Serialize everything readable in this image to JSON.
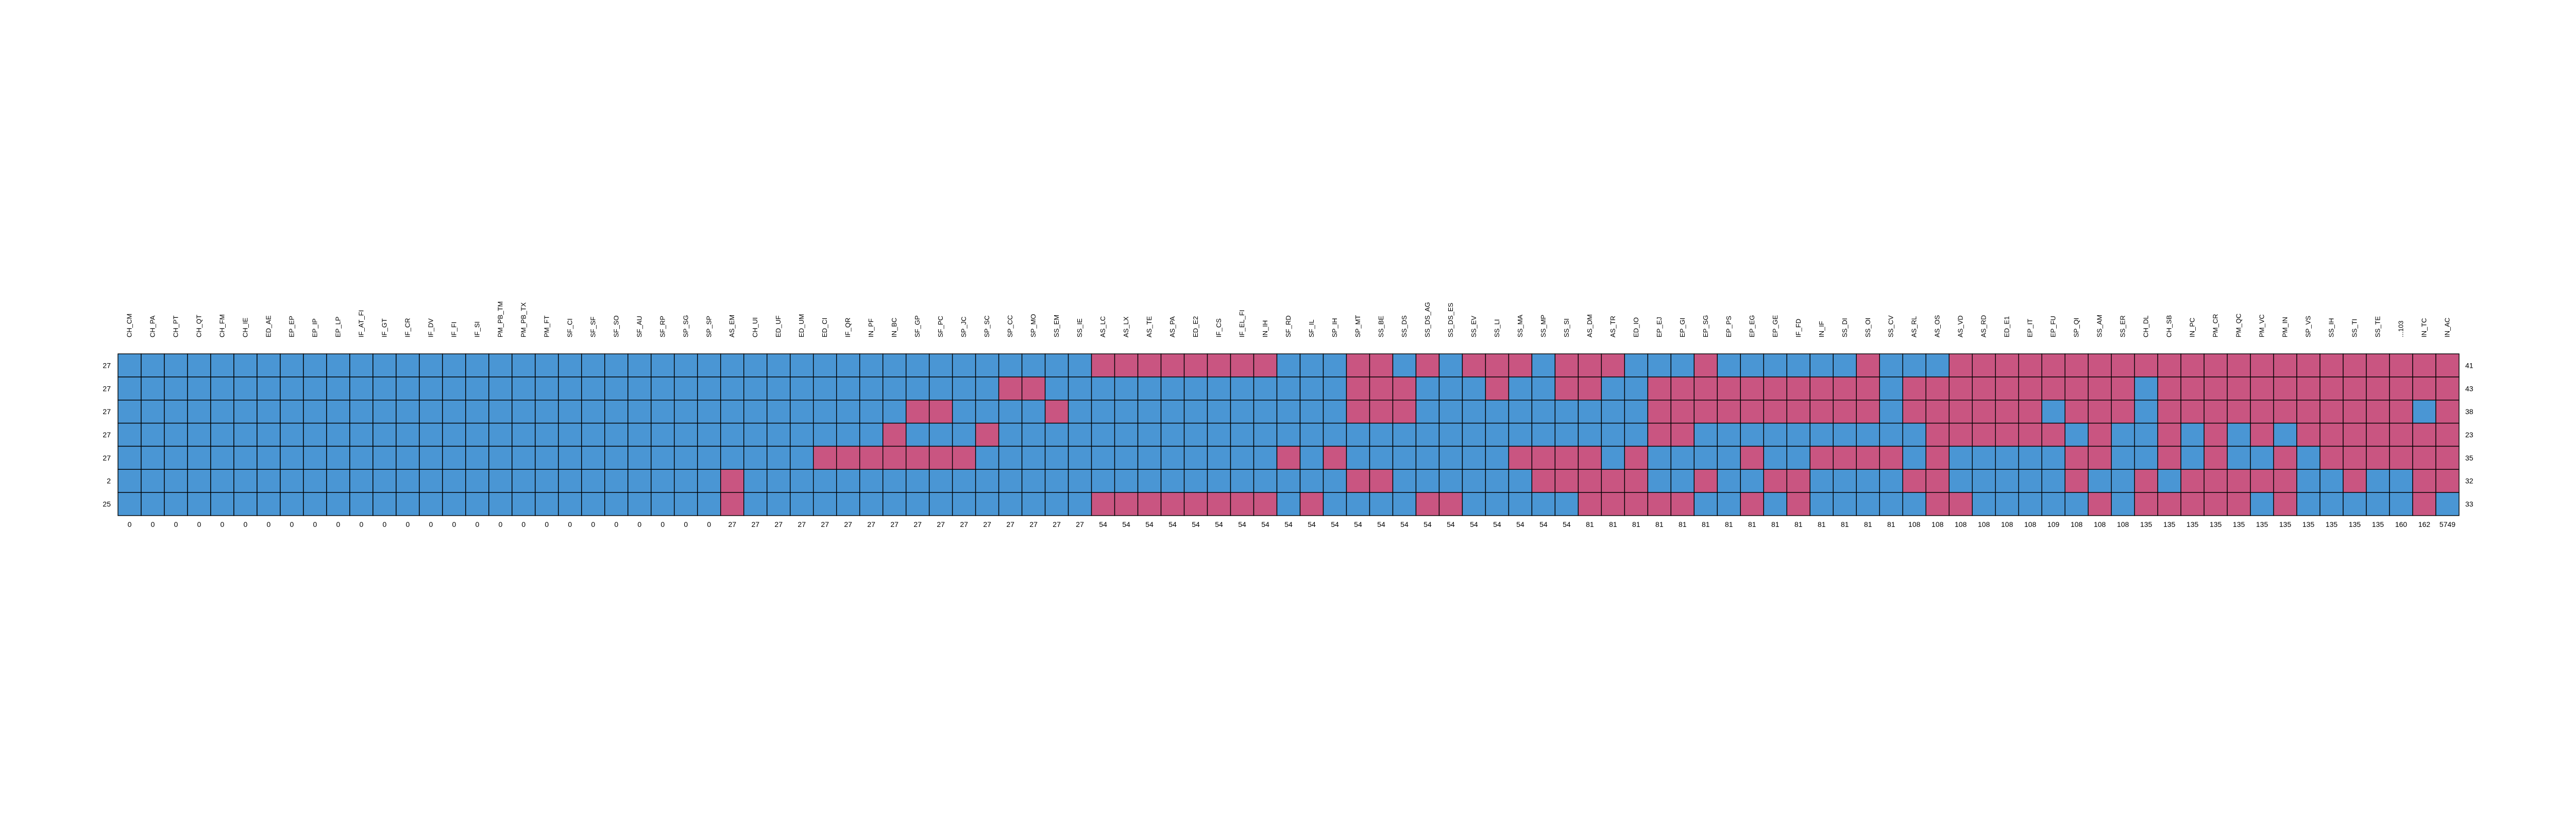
{
  "colors": {
    "blue": "#4a96d4",
    "pink": "#c95581",
    "border": "#000000",
    "background": "#ffffff"
  },
  "legend": "none",
  "chart_data": {
    "type": "heatmap",
    "columns": [
      "CH_CM",
      "CH_PA",
      "CH_PT",
      "CH_QT",
      "CH_FM",
      "CH_IE",
      "ED_AE",
      "EP_EP",
      "EP_IP",
      "EP_LP",
      "IF_AT_FI",
      "IF_GT",
      "IF_CR",
      "IF_DV",
      "IF_FI",
      "IF_SI",
      "PM_PB_TM",
      "PM_PB_TX",
      "PM_FT",
      "SF_CI",
      "SF_SF",
      "SF_SO",
      "SF_AU",
      "SF_RP",
      "SP_SG",
      "SP_SP",
      "AS_EM",
      "CH_UI",
      "ED_UF",
      "ED_UM",
      "ED_CI",
      "IF_QR",
      "IN_PF",
      "IN_BC",
      "SF_GP",
      "SF_PC",
      "SP_JC",
      "SP_SC",
      "SP_CC",
      "SP_MO",
      "SS_EM",
      "SS_IE",
      "AS_LC",
      "AS_LX",
      "AS_TE",
      "AS_PA",
      "ED_E2",
      "IF_CS",
      "IF_EL_FI",
      "IN_IH",
      "SF_RD",
      "SF_IL",
      "SP_IH",
      "SP_MT",
      "SS_BE",
      "SS_DS",
      "SS_DS_AG",
      "SS_DS_ES",
      "SS_EV",
      "SS_LI",
      "SS_MA",
      "SS_MP",
      "SS_SI",
      "AS_DM",
      "AS_TR",
      "ED_IO",
      "EP_EJ",
      "EP_GI",
      "EP_SG",
      "EP_PS",
      "EP_EG",
      "EP_GE",
      "IF_FD",
      "IN_IF",
      "SS_DI",
      "SS_OI",
      "SS_CV",
      "AS_RL",
      "AS_OS",
      "AS_VD",
      "AS_RD",
      "ED_E1",
      "EP_IT",
      "EP_FU",
      "SP_QI",
      "SS_AM",
      "SS_ER",
      "CH_DL",
      "CH_SB",
      "IN_PC",
      "PM_CR",
      "PM_QC",
      "PM_VC",
      "PM_IN",
      "SP_VS",
      "SS_IH",
      "SS_TI",
      "SS_TE",
      "...103",
      "IN_TC",
      "IN_AC"
    ],
    "column_totals": [
      "0",
      "0",
      "0",
      "0",
      "0",
      "0",
      "0",
      "0",
      "0",
      "0",
      "0",
      "0",
      "0",
      "0",
      "0",
      "0",
      "0",
      "0",
      "0",
      "0",
      "0",
      "0",
      "0",
      "0",
      "0",
      "0",
      "27",
      "27",
      "27",
      "27",
      "27",
      "27",
      "27",
      "27",
      "27",
      "27",
      "27",
      "27",
      "27",
      "27",
      "27",
      "27",
      "54",
      "54",
      "54",
      "54",
      "54",
      "54",
      "54",
      "54",
      "54",
      "54",
      "54",
      "54",
      "54",
      "54",
      "54",
      "54",
      "54",
      "54",
      "54",
      "54",
      "54",
      "81",
      "81",
      "81",
      "81",
      "81",
      "81",
      "81",
      "81",
      "81",
      "81",
      "81",
      "81",
      "81",
      "81",
      "108",
      "108",
      "108",
      "108",
      "108",
      "108",
      "109",
      "108",
      "108",
      "108",
      "135",
      "135",
      "135",
      "135",
      "135",
      "135",
      "135",
      "135",
      "135",
      "135",
      "135",
      "160",
      "162",
      "5749"
    ],
    "row_left_labels": [
      "27",
      "27",
      "27",
      "27",
      "27",
      "2",
      "25"
    ],
    "row_right_labels": [
      "41",
      "43",
      "38",
      "23",
      "35",
      "32",
      "33"
    ],
    "matrix": [
      "BBBBBBBBBBBBBBBBBBBBBBBBBBBBBBBBBBBBBBBBBBPPPPPPPPBBBPPBPBPPPBPPPBBBPBBBBBBPBBBPPPPPPPPPPPPPPPPPPPPPPPP",
      "BBBBBBBBBBBBBBBBBBBBBBBBBBBBBBBBBBBBBBPPBBBBBBBBBBBBBPPPBBBPBBPPBBPPPPPPPPPPBPPPPPPPPPPBPPPPPPPPPPPPPPPP",
      "BBBBBBBBBBBBBBBBBBBBBBBBBBBBBBBBBBPPBBBBPBBBBBBBBBBBBPPPBBBBBBBBBBPPPPPPPPPPBPPPPPPBPPPBPPPPPPPPPPPBPPPPP",
      "BBBBBBBBBBBBBBBBBBBBBBBBBBBBBBBBBPBBBPBBBBBBBBBBBBBBBBBBBBBBBBBBBBPPBBBBBBBBBBPPPPPPBPBBPBPBPBPPPPPPPPPPP",
      "BBBBBBBBBBBBBBBBBBBBBBBBBBBBBBPPPPPPPBBBBBBBBBBBBBPBPBBBBBBBPPPPBPBBBBPBBPPPPBPBBBBBPPBBPBPBBPBPPPPPPPPP",
      "BBBBBBBBBBBBBBBBBBBBBBBBBBPBBBBBBBBBBBBBBBBBBBBBBBBBBPPBBBBBBPPPPPBBPBBPPBBBBPPBBBBBPBBPBPPPPPBBPBBPPPPP",
      "BBBBBBBBBBBBBBBBBBBBBBBBBBPBBBBBBBBBBBBBBBPPPPPPPPBPBBBBPPBBBBBPPPPPBBPBPBBBBBPPBBBBBPBPPPPPBPBBBBBPBPBPP"
    ]
  }
}
